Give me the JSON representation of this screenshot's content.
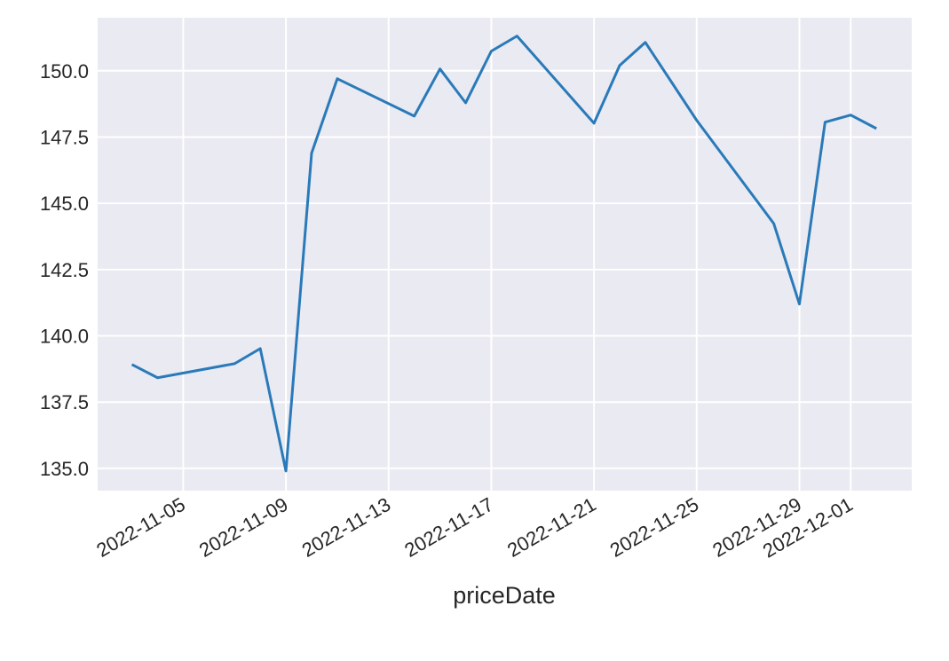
{
  "chart_data": {
    "type": "line",
    "x_label": "priceDate",
    "color": "#2a7ab9",
    "grid": true,
    "x": [
      "2022-11-03",
      "2022-11-04",
      "2022-11-07",
      "2022-11-08",
      "2022-11-09",
      "2022-11-10",
      "2022-11-11",
      "2022-11-14",
      "2022-11-15",
      "2022-11-16",
      "2022-11-17",
      "2022-11-18",
      "2022-11-21",
      "2022-11-22",
      "2022-11-23",
      "2022-11-25",
      "2022-11-28",
      "2022-11-29",
      "2022-11-30",
      "2022-12-01",
      "2022-12-02"
    ],
    "values": [
      138.92,
      138.42,
      138.95,
      139.52,
      134.9,
      146.89,
      149.7,
      148.29,
      150.07,
      148.79,
      150.74,
      151.31,
      148.02,
      150.2,
      151.07,
      148.13,
      144.24,
      141.2,
      148.06,
      148.33,
      147.82
    ],
    "xlim": [
      "2022-11-01T16:00",
      "2022-12-03T09:00"
    ],
    "xticks": [
      "2022-11-05",
      "2022-11-09",
      "2022-11-13",
      "2022-11-17",
      "2022-11-21",
      "2022-11-25",
      "2022-11-29",
      "2022-12-01"
    ],
    "ylim": [
      134.16,
      152.0
    ],
    "yticks": [
      {
        "value": 135,
        "label": "135.0"
      },
      {
        "value": 137.5,
        "label": "137.5"
      },
      {
        "value": 140,
        "label": "140.0"
      },
      {
        "value": 142.5,
        "label": "142.5"
      },
      {
        "value": 145,
        "label": "145.0"
      },
      {
        "value": 147.5,
        "label": "147.5"
      },
      {
        "value": 150,
        "label": "150.0"
      }
    ]
  }
}
